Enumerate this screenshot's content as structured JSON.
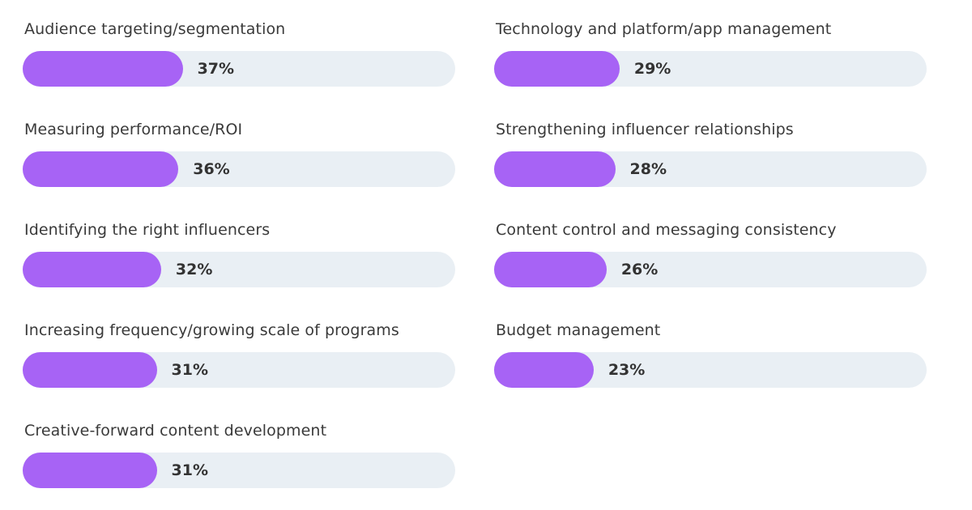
{
  "chart_data": {
    "type": "bar",
    "orientation": "horizontal",
    "xlim": [
      0,
      100
    ],
    "unit": "%",
    "colors": {
      "bar": "#a763f5",
      "track": "#e9eff4",
      "text": "#333333"
    },
    "columns": [
      [
        {
          "label": "Audience targeting/segmentation",
          "value": 37,
          "value_label": "37%"
        },
        {
          "label": "Measuring performance/ROI",
          "value": 36,
          "value_label": "36%"
        },
        {
          "label": "Identifying the right influencers",
          "value": 32,
          "value_label": "32%"
        },
        {
          "label": "Increasing frequency/growing scale of programs",
          "value": 31,
          "value_label": "31%"
        },
        {
          "label": "Creative-forward content development",
          "value": 31,
          "value_label": "31%"
        }
      ],
      [
        {
          "label": "Technology and platform/app management",
          "value": 29,
          "value_label": "29%"
        },
        {
          "label": "Strengthening influencer relationships",
          "value": 28,
          "value_label": "28%"
        },
        {
          "label": "Content control and messaging consistency",
          "value": 26,
          "value_label": "26%"
        },
        {
          "label": "Budget management",
          "value": 23,
          "value_label": "23%"
        }
      ]
    ]
  }
}
